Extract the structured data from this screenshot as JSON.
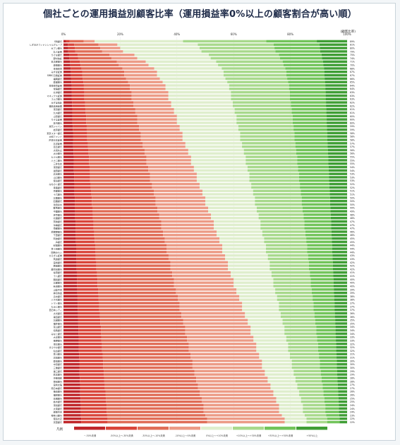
{
  "page": {
    "title": "個社ごとの運用損益別顧客比率（運用損益率0%以上の顧客割合が高い順）"
  },
  "chart_data": {
    "type": "bar",
    "stacked": "100%",
    "orientation": "horizontal",
    "title": "個社ごとの運用損益別顧客比率（運用損益率0%以上の顧客割合が高い順）",
    "axis_unit": "(顧客比率)",
    "x_ticks": [
      "0%",
      "20%",
      "40%",
      "60%",
      "80%",
      "100%"
    ],
    "legend": {
      "title": "凡例",
      "placement": "bottom",
      "labels": [
        "~-50%未満",
        "-50%以上～-30%未満",
        "-30%以上～-10%未満",
        "-10%以上～0%未満",
        "0%以上～+10%未満",
        "+10%以上～+30%未満",
        "+30%以上～+50%未満",
        "+50%以上"
      ]
    },
    "colors": [
      "#c0262a",
      "#d9453a",
      "#e06d57",
      "#ec9b86",
      "#dfeecd",
      "#a8d98c",
      "#72c45a",
      "#3f9e35"
    ],
    "companies": [
      "SBJ銀行",
      "しずおかフィナンシャルグループ",
      "セブン銀行",
      "丸三証券",
      "りそな銀行",
      "野村信託",
      "名古屋銀行",
      "静岡銀行",
      "東海東京",
      "みずほ証券",
      "SMBC日興証券",
      "福岡銀行",
      "愛媛銀行",
      "東海東京証券",
      "常陽銀行",
      "北洋銀行",
      "マネックス証券",
      "スルガ銀行",
      "みずほ信託",
      "福島信用金庫",
      "東京銀行",
      "九州銀行",
      "山形銀行",
      "りそな証券",
      "荘内銀行",
      "楽天ジャパン",
      "岩手銀行",
      "東京スター銀行",
      "大和ファンド",
      "JR東日本証券",
      "北洋証券",
      "百五銀行",
      "大垣共立",
      "大分銀行",
      "七十七銀行",
      "八十二銀行",
      "三井住友",
      "東邦銀行",
      "滋賀銀行",
      "広島銀行",
      "山口銀行",
      "徳島銀行",
      "みちのく銀行",
      "青森銀行",
      "京都銀行",
      "十六銀行",
      "北陸銀行",
      "四国銀行",
      "池田泉州",
      "群馬銀行",
      "中国銀行",
      "伊予銀行",
      "北國銀行",
      "琉球銀行",
      "沖縄銀行",
      "南都銀行",
      "武蔵野銀行",
      "千葉銀行",
      "阿波銀行",
      "JA銀行",
      "紀陽銀行",
      "百十四銀行",
      "関西みらい",
      "ひろぎん証券",
      "筑波銀行",
      "宮崎銀行",
      "肥後銀行",
      "鹿児島銀行",
      "佐賀銀行",
      "十八銀行",
      "親和銀行",
      "北都銀行",
      "秋田銀行",
      "山梨中央",
      "静清信金",
      "清水銀行",
      "八千代銀行",
      "トマト銀行",
      "もみじ銀行",
      "西日本シティ",
      "大光銀行",
      "第四銀行",
      "北越銀行",
      "福井銀行",
      "富山銀行",
      "但馬銀行",
      "みなと銀行",
      "大正銀行",
      "長野銀行",
      "東北銀行",
      "きらやか銀行",
      "仙台銀行",
      "香川銀行",
      "高知銀行",
      "愛知銀行",
      "中京銀行",
      "三重銀行",
      "第三銀行",
      "熊本銀行",
      "沖縄海邦",
      "豊和銀行",
      "宮崎太陽",
      "南日本銀行",
      "長崎銀行",
      "福邦銀行",
      "島根銀行",
      "栃木銀行",
      "東和銀行",
      "大東銀行",
      "静岡中央",
      "神奈川銀行",
      "徳島大正",
      "京葉銀行"
    ],
    "gain_labels": [
      "89%",
      "81%",
      "80%",
      "79%",
      "75%",
      "74%",
      "71%",
      "70%",
      "68%",
      "67%",
      "67%",
      "66%",
      "65%",
      "64%",
      "64%",
      "63%",
      "63%",
      "63%",
      "62%",
      "62%",
      "61%",
      "61%",
      "60%",
      "60%",
      "60%",
      "59%",
      "59%",
      "58%",
      "58%",
      "58%",
      "57%",
      "57%",
      "56%",
      "56%",
      "55%",
      "55%",
      "55%",
      "54%",
      "54%",
      "53%",
      "53%",
      "53%",
      "52%",
      "52%",
      "51%",
      "51%",
      "50%",
      "50%",
      "50%",
      "49%",
      "49%",
      "48%",
      "48%",
      "47%",
      "47%",
      "47%",
      "46%",
      "46%",
      "45%",
      "45%",
      "44%",
      "44%",
      "44%",
      "43%",
      "43%",
      "42%",
      "42%",
      "42%",
      "41%",
      "41%",
      "40%",
      "40%",
      "40%",
      "39%",
      "39%",
      "38%",
      "38%",
      "37%",
      "37%",
      "37%",
      "36%",
      "36%",
      "35%",
      "35%",
      "34%",
      "34%",
      "34%",
      "33%",
      "33%",
      "32%",
      "32%",
      "32%",
      "31%",
      "31%",
      "30%",
      "30%",
      "30%",
      "29%",
      "29%",
      "28%",
      "28%",
      "27%",
      "27%",
      "26%",
      "26%",
      "25%",
      "25%",
      "24%",
      "24%",
      "24%",
      "23%",
      "22%",
      "22%"
    ]
  }
}
